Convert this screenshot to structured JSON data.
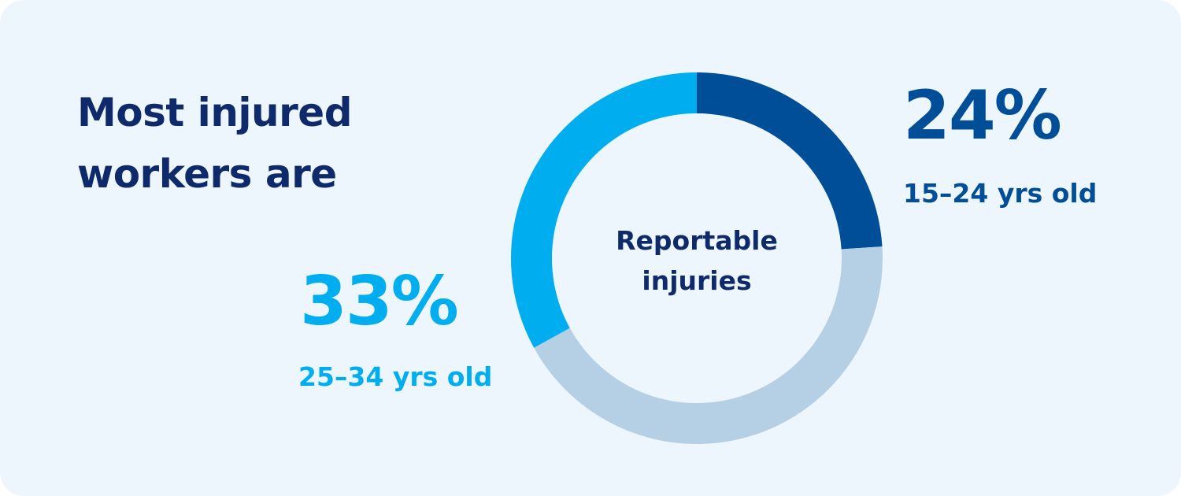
{
  "headline": {
    "line1": "Most injured",
    "line2": "workers are"
  },
  "center_label": {
    "line1": "Reportable",
    "line2": "injuries"
  },
  "stats": {
    "age_15_24": {
      "value": "24%",
      "label": "15–24 yrs old"
    },
    "age_25_34": {
      "value": "33%",
      "label": "25–34 yrs old"
    }
  },
  "colors": {
    "background": "#eef6fd",
    "headline_text": "#0e2a6b",
    "age_15_24": "#004e98",
    "age_25_34": "#00aeef",
    "other": "#b5cfe5"
  },
  "chart_data": {
    "type": "pie",
    "title": "",
    "center_text": "Reportable injuries",
    "slices": [
      {
        "label": "15–24 yrs old",
        "value": 24,
        "color": "#004e98"
      },
      {
        "label": "",
        "value": 43,
        "color": "#b5cfe5"
      },
      {
        "label": "25–34 yrs old",
        "value": 33,
        "color": "#00aeef"
      }
    ],
    "start_angle_deg": 0,
    "direction": "clockwise",
    "legend": "none"
  }
}
